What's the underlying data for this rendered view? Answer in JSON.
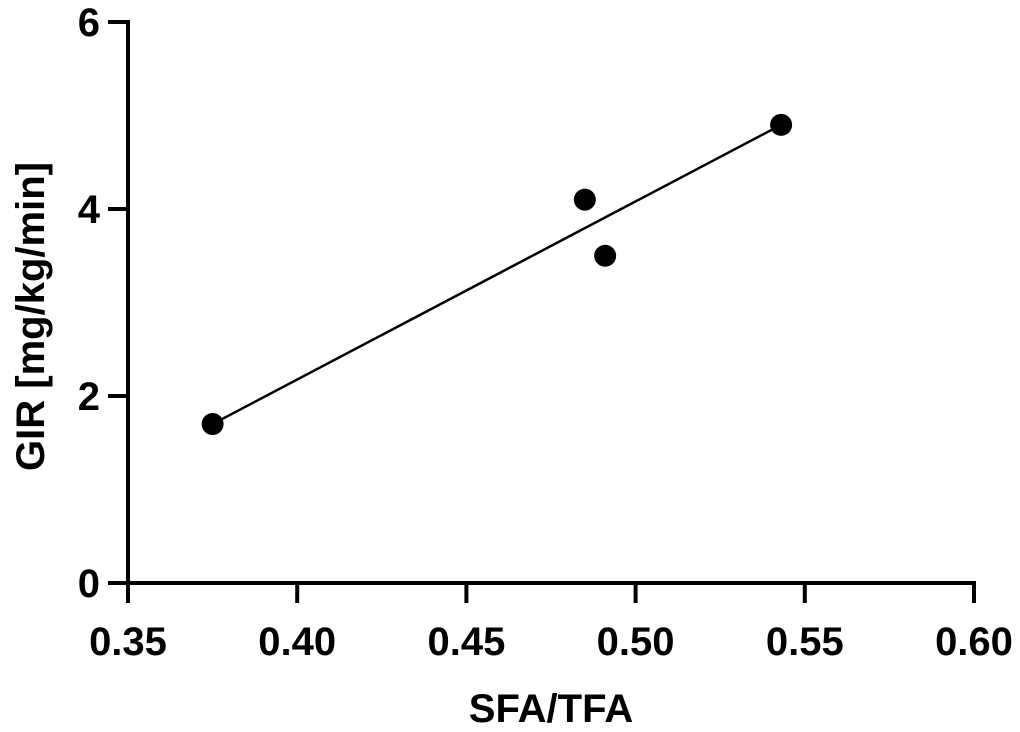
{
  "chart_data": {
    "type": "scatter",
    "title": "",
    "xlabel": "SFA/TFA",
    "ylabel": "GIR [mg/kg/min]",
    "xlim": [
      0.35,
      0.6
    ],
    "ylim": [
      0,
      6
    ],
    "x_ticks": [
      0.35,
      0.4,
      0.45,
      0.5,
      0.55,
      0.6
    ],
    "x_tick_labels": [
      "0.35",
      "0.40",
      "0.45",
      "0.50",
      "0.55",
      "0.60"
    ],
    "y_ticks": [
      0,
      2,
      4,
      6
    ],
    "y_tick_labels": [
      "0",
      "2",
      "4",
      "6"
    ],
    "grid": false,
    "colors": {
      "points": "#000000",
      "axes": "#000000",
      "fit_line": "#000000"
    },
    "series": [
      {
        "x": [
          0.375,
          0.485,
          0.491,
          0.543
        ],
        "y": [
          1.7,
          4.1,
          3.5,
          4.9
        ]
      }
    ],
    "fit_line": {
      "x": [
        0.375,
        0.543
      ],
      "y": [
        1.7,
        4.9
      ]
    }
  }
}
